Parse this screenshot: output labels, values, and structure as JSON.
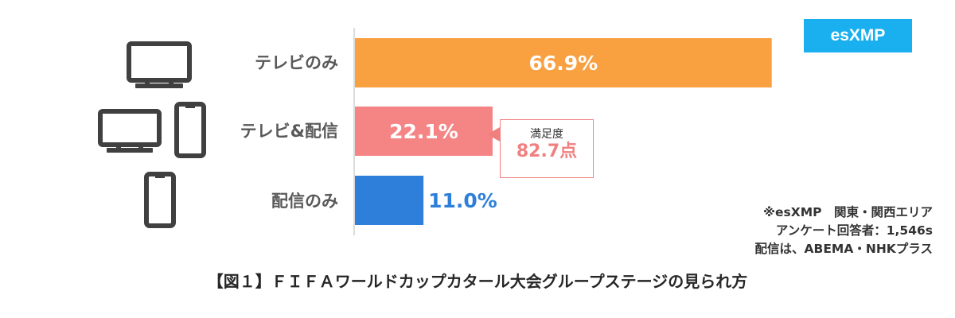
{
  "badge": "esXMP",
  "callout": {
    "title": "満足度",
    "value": "82.7点"
  },
  "note": [
    "※esXMP　関東・関西エリア",
    "アンケート回答者：1,546s",
    "配信は、ABEMA・NHKプラス"
  ],
  "caption": "【図１】ＦＩＦＡワールドカップカタール大会グループステージの見られ方",
  "colors": {
    "tv_only": "#f9a040",
    "tv_and_stream": "#f58585",
    "stream_only": "#2e7fd9",
    "badge": "#1ab0f0"
  },
  "icons": [
    "tv-icon",
    "tv-icon",
    "smartphone-icon",
    "smartphone-icon"
  ],
  "chart_data": {
    "type": "bar",
    "orientation": "horizontal",
    "categories": [
      "テレビのみ",
      "テレビ&配信",
      "配信のみ"
    ],
    "values": [
      66.9,
      22.1,
      11.0
    ],
    "value_labels": [
      "66.9%",
      "22.1%",
      "11.0%"
    ],
    "xlim": [
      0,
      70
    ],
    "grid": false,
    "legend": "none"
  }
}
